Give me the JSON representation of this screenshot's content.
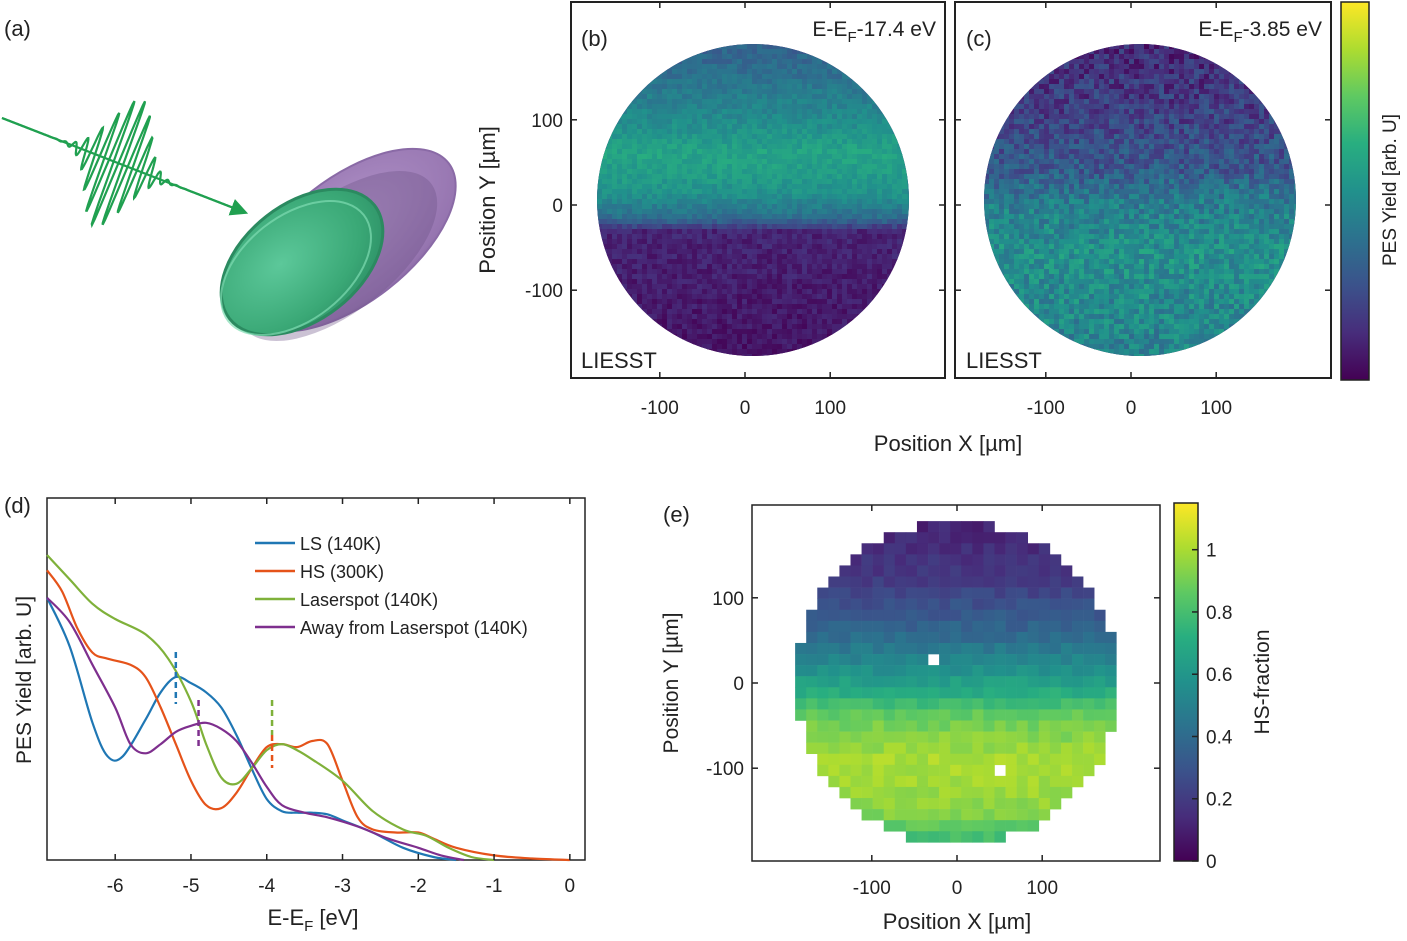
{
  "figure": {
    "panel_labels": [
      "(a)",
      "(b)",
      "(c)",
      "(d)",
      "(e)"
    ]
  },
  "colors": {
    "ls": "#1f77b4",
    "hs": "#e5531a",
    "laserspot": "#7fb13a",
    "away": "#7e2f8e",
    "pulse": "#20a050",
    "disc_green": "#4fb886",
    "disc_purple": "#9c7bb5",
    "viridis": [
      "#440154",
      "#472d7b",
      "#3b528b",
      "#2c728e",
      "#21918c",
      "#28ae80",
      "#5ec962",
      "#addc30",
      "#fde725"
    ]
  },
  "chart_data": [
    {
      "panel": "(b)",
      "type": "heatmap",
      "annotation": "E-E_F-17.4 eV",
      "annotation_parts": {
        "prefix": "E-E",
        "sub": "F",
        "suffix": "-17.4 eV"
      },
      "corner_label": "LIESST",
      "ylabel": "Position Y [µm]",
      "xticks": [
        -100,
        0,
        100
      ],
      "yticks": [
        100,
        0,
        -100
      ],
      "xlim": [
        -200,
        200
      ],
      "ylim": [
        -200,
        200
      ],
      "shape": "circle",
      "radius": 190,
      "intensity_profile_by_y": [
        {
          "y": 180,
          "v": 0.32
        },
        {
          "y": 130,
          "v": 0.42
        },
        {
          "y": 90,
          "v": 0.5
        },
        {
          "y": 60,
          "v": 0.58
        },
        {
          "y": 30,
          "v": 0.54
        },
        {
          "y": 10,
          "v": 0.5
        },
        {
          "y": -20,
          "v": 0.35
        },
        {
          "y": -35,
          "v": 0.1
        },
        {
          "y": -190,
          "v": 0.05
        }
      ]
    },
    {
      "panel": "(c)",
      "type": "heatmap",
      "annotation": "E-E_F-3.85 eV",
      "annotation_parts": {
        "prefix": "E-E",
        "sub": "F",
        "suffix": "-3.85 eV"
      },
      "corner_label": "LIESST",
      "xticks": [
        -100,
        0,
        100
      ],
      "xlim": [
        -200,
        200
      ],
      "ylim": [
        -200,
        200
      ],
      "shape": "circle",
      "radius": 190,
      "intensity_profile_by_y": [
        {
          "y": 180,
          "v": 0.12
        },
        {
          "y": 100,
          "v": 0.2
        },
        {
          "y": 40,
          "v": 0.28
        },
        {
          "y": 0,
          "v": 0.42
        },
        {
          "y": -60,
          "v": 0.5
        },
        {
          "y": -190,
          "v": 0.44
        }
      ],
      "shared_xlabel": "Position X [µm]",
      "colorbar_label": "PES Yield [arb. U]"
    },
    {
      "panel": "(d)",
      "type": "line",
      "xlabel_parts": {
        "prefix": "E-E",
        "sub": "F",
        "suffix": " [eV]"
      },
      "ylabel": "PES Yield [arb. U]",
      "xlim": [
        -6.9,
        0.2
      ],
      "ylim": [
        0,
        1
      ],
      "xticks": [
        -6,
        -5,
        -4,
        -3,
        -2,
        -1,
        0
      ],
      "legend_position": "top-right",
      "series": [
        {
          "name": "LS (140K)",
          "color_key": "ls",
          "x": [
            -6.9,
            -6.6,
            -6.3,
            -6.1,
            -5.9,
            -5.6,
            -5.4,
            -5.2,
            -5.0,
            -4.8,
            -4.6,
            -4.4,
            -4.2,
            -4.0,
            -3.8,
            -3.6,
            -3.4,
            -3.2,
            -3.0,
            -2.6,
            -2.2,
            -1.8,
            -1.5
          ],
          "y": [
            0.86,
            0.7,
            0.45,
            0.34,
            0.34,
            0.46,
            0.55,
            0.6,
            0.58,
            0.55,
            0.5,
            0.41,
            0.3,
            0.2,
            0.16,
            0.155,
            0.155,
            0.15,
            0.13,
            0.09,
            0.04,
            0.01,
            0.0
          ]
        },
        {
          "name": "HS (300K)",
          "color_key": "hs",
          "x": [
            -6.9,
            -6.7,
            -6.5,
            -6.3,
            -6.1,
            -5.8,
            -5.6,
            -5.4,
            -5.2,
            -5.0,
            -4.8,
            -4.6,
            -4.4,
            -4.2,
            -4.0,
            -3.8,
            -3.6,
            -3.4,
            -3.2,
            -3.0,
            -2.8,
            -2.6,
            -2.3,
            -2.0,
            -1.8,
            -1.5,
            -1.0,
            -0.5,
            0.0
          ],
          "y": [
            0.95,
            0.88,
            0.76,
            0.68,
            0.66,
            0.64,
            0.6,
            0.5,
            0.38,
            0.26,
            0.18,
            0.17,
            0.22,
            0.3,
            0.37,
            0.38,
            0.37,
            0.39,
            0.38,
            0.26,
            0.14,
            0.1,
            0.09,
            0.09,
            0.07,
            0.04,
            0.015,
            0.005,
            0.0
          ]
        },
        {
          "name": "Laserspot (140K)",
          "color_key": "laserspot",
          "x": [
            -6.9,
            -6.6,
            -6.3,
            -6.0,
            -5.6,
            -5.3,
            -5.0,
            -4.8,
            -4.6,
            -4.4,
            -4.2,
            -4.0,
            -3.8,
            -3.6,
            -3.4,
            -3.0,
            -2.6,
            -2.2,
            -1.9,
            -1.6,
            -1.3,
            -1.0
          ],
          "y": [
            1.0,
            0.92,
            0.84,
            0.79,
            0.74,
            0.66,
            0.52,
            0.38,
            0.27,
            0.25,
            0.3,
            0.36,
            0.38,
            0.36,
            0.33,
            0.26,
            0.16,
            0.1,
            0.08,
            0.04,
            0.01,
            0.0
          ]
        },
        {
          "name": "Away from Laserspot (140K)",
          "color_key": "away",
          "x": [
            -6.9,
            -6.6,
            -6.3,
            -6.0,
            -5.8,
            -5.6,
            -5.4,
            -5.2,
            -5.0,
            -4.8,
            -4.6,
            -4.4,
            -4.2,
            -4.0,
            -3.8,
            -3.5,
            -3.2,
            -2.8,
            -2.4,
            -2.0,
            -1.7,
            -1.4
          ],
          "y": [
            0.86,
            0.78,
            0.64,
            0.5,
            0.38,
            0.35,
            0.38,
            0.42,
            0.44,
            0.45,
            0.43,
            0.39,
            0.32,
            0.24,
            0.18,
            0.155,
            0.14,
            0.11,
            0.07,
            0.04,
            0.015,
            0.0
          ]
        }
      ],
      "markers": [
        {
          "x": -5.2,
          "color_key": "ls"
        },
        {
          "x": -4.9,
          "color_key": "away"
        },
        {
          "x": -3.93,
          "color_key": "laserspot"
        },
        {
          "x": -3.93,
          "color_key": "hs"
        }
      ]
    },
    {
      "panel": "(e)",
      "type": "heatmap",
      "xlabel": "Position X [µm]",
      "ylabel": "Position Y [µm]",
      "xticks": [
        -100,
        0,
        100
      ],
      "yticks": [
        100,
        0,
        -100
      ],
      "xlim": [
        -200,
        200
      ],
      "ylim": [
        -200,
        200
      ],
      "radius": 190,
      "pixel_size_um": 13,
      "colorbar_label": "HS-fraction",
      "colorbar_ticks": [
        0,
        0.2,
        0.4,
        0.6,
        0.8,
        1
      ],
      "colorbar_range": [
        0,
        1.15
      ],
      "hs_fraction_by_y": [
        {
          "y": 180,
          "v": 0.12
        },
        {
          "y": 120,
          "v": 0.2
        },
        {
          "y": 60,
          "v": 0.38
        },
        {
          "y": 20,
          "v": 0.55
        },
        {
          "y": -10,
          "v": 0.7
        },
        {
          "y": -40,
          "v": 0.88
        },
        {
          "y": -90,
          "v": 1.0
        },
        {
          "y": -150,
          "v": 0.95
        },
        {
          "y": -190,
          "v": 0.75
        }
      ],
      "missing_pixels": [
        {
          "x": -28,
          "y": 22
        },
        {
          "x": 50,
          "y": -97
        }
      ]
    }
  ]
}
